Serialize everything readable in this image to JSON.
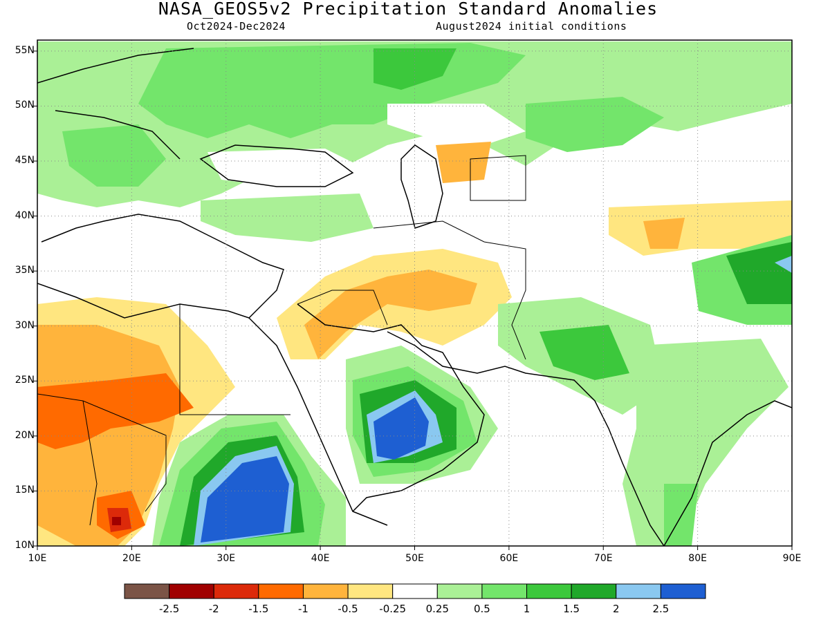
{
  "header": {
    "title": "NASA_GEOS5v2 Precipitation Standard Anomalies",
    "period": "Oct2024-Dec2024",
    "init": "August2024 initial conditions"
  },
  "map": {
    "lat_ticks": [
      {
        "value": 55,
        "label": "55N"
      },
      {
        "value": 50,
        "label": "50N"
      },
      {
        "value": 45,
        "label": "45N"
      },
      {
        "value": 40,
        "label": "40N"
      },
      {
        "value": 35,
        "label": "35N"
      },
      {
        "value": 30,
        "label": "30N"
      },
      {
        "value": 25,
        "label": "25N"
      },
      {
        "value": 20,
        "label": "20N"
      },
      {
        "value": 15,
        "label": "15N"
      },
      {
        "value": 10,
        "label": "10N"
      }
    ],
    "lon_ticks": [
      {
        "value": 10,
        "label": "10E"
      },
      {
        "value": 20,
        "label": "20E"
      },
      {
        "value": 30,
        "label": "30E"
      },
      {
        "value": 40,
        "label": "40E"
      },
      {
        "value": 50,
        "label": "50E"
      },
      {
        "value": 60,
        "label": "60E"
      },
      {
        "value": 70,
        "label": "70E"
      },
      {
        "value": 80,
        "label": "80E"
      },
      {
        "value": 90,
        "label": "90E"
      }
    ],
    "lon_range": [
      10,
      90
    ],
    "lat_range": [
      10,
      56
    ],
    "grid": "dotted"
  },
  "colorbar": {
    "colors": [
      "#7b5446",
      "#a00000",
      "#dc2a0a",
      "#ff6a00",
      "#ffb43c",
      "#ffe680",
      "#ffffff",
      "#aaf096",
      "#73e56b",
      "#3cc83c",
      "#20a82a",
      "#8ac8f0",
      "#1e5fd2"
    ],
    "labels": [
      "-2.5",
      "-2",
      "-1.5",
      "-1",
      "-0.5",
      "-0.25",
      "0.25",
      "0.5",
      "1",
      "1.5",
      "2",
      "2.5"
    ]
  },
  "colors": {
    "dry_strong": "#ff6a00",
    "dry_moderate": "#ffb43c",
    "dry_weak": "#ffe680",
    "wet_weak": "#aaf096",
    "wet_moderate": "#73e56b",
    "wet_strong": "#20a82a",
    "very_wet": "#1e5fd2"
  }
}
